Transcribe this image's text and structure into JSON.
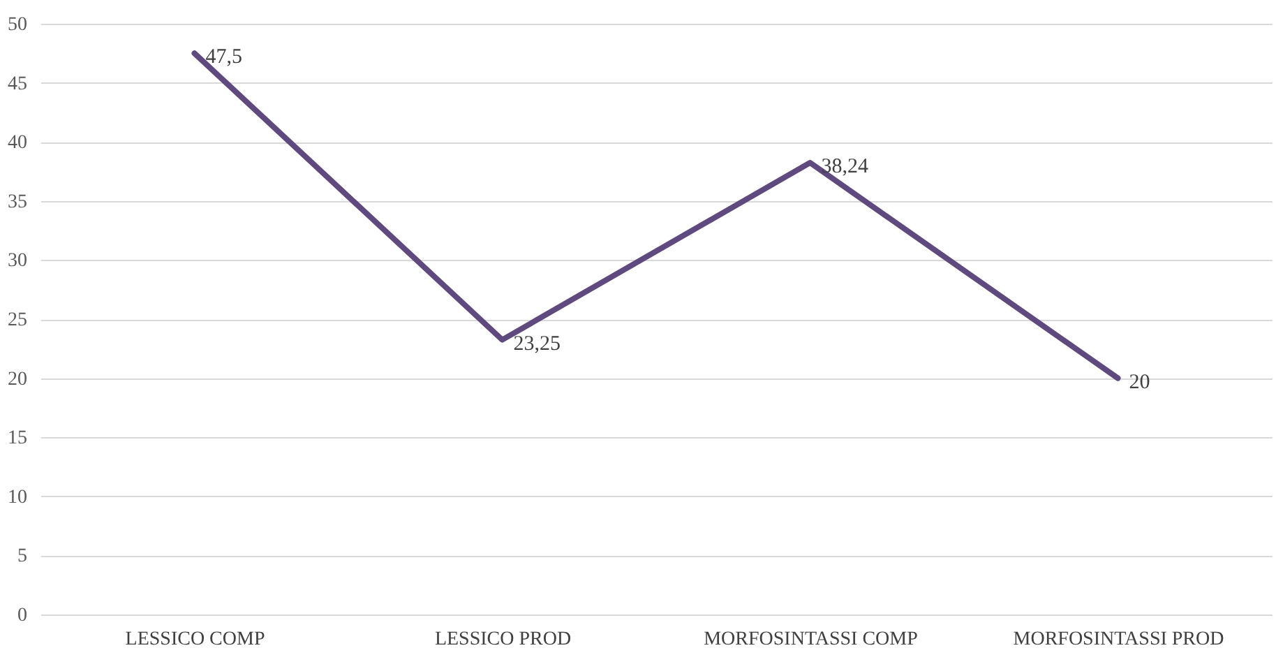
{
  "chart_data": {
    "type": "line",
    "categories": [
      "LESSICO COMP",
      "LESSICO PROD",
      "MORFOSINTASSI COMP",
      "MORFOSINTASSI PROD"
    ],
    "series": [
      {
        "color": "#5e4a7e",
        "values": [
          47.5,
          23.25,
          38.24,
          20
        ],
        "value_labels": [
          "47,5",
          "23,25",
          "38,24",
          "20"
        ]
      }
    ],
    "ylim": [
      0,
      50
    ],
    "yticks": [
      0,
      5,
      10,
      15,
      20,
      25,
      30,
      35,
      40,
      45,
      50
    ],
    "grid": "y",
    "legend": false,
    "marker": "none",
    "line_style": "solid"
  }
}
